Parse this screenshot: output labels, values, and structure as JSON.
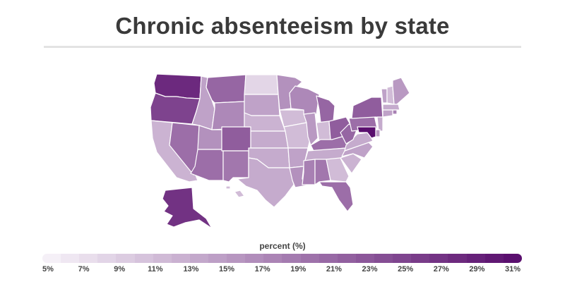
{
  "title": "Chronic absenteeism by state",
  "chart_data": {
    "type": "choropleth",
    "metric": "percent (%)",
    "scale": {
      "min": 5,
      "max": 31,
      "color_low": "#f5f0f7",
      "color_high": "#5a0f6e",
      "ticks": [
        "5%",
        "7%",
        "9%",
        "11%",
        "13%",
        "15%",
        "17%",
        "19%",
        "21%",
        "23%",
        "25%",
        "27%",
        "29%",
        "31%"
      ]
    },
    "states": [
      {
        "id": "WA",
        "value": 28
      },
      {
        "id": "OR",
        "value": 25
      },
      {
        "id": "CA",
        "value": 12
      },
      {
        "id": "NV",
        "value": 20
      },
      {
        "id": "ID",
        "value": 14
      },
      {
        "id": "MT",
        "value": 21
      },
      {
        "id": "WY",
        "value": 17
      },
      {
        "id": "UT",
        "value": 16
      },
      {
        "id": "AZ",
        "value": 20
      },
      {
        "id": "CO",
        "value": 22
      },
      {
        "id": "NM",
        "value": 19
      },
      {
        "id": "ND",
        "value": 8
      },
      {
        "id": "SD",
        "value": 14
      },
      {
        "id": "NE",
        "value": 12
      },
      {
        "id": "KS",
        "value": 13
      },
      {
        "id": "OK",
        "value": 13
      },
      {
        "id": "TX",
        "value": 13
      },
      {
        "id": "MN",
        "value": 16
      },
      {
        "id": "IA",
        "value": 11
      },
      {
        "id": "MO",
        "value": 11
      },
      {
        "id": "AR",
        "value": 14
      },
      {
        "id": "LA",
        "value": 16
      },
      {
        "id": "WI",
        "value": 17
      },
      {
        "id": "IL",
        "value": 15
      },
      {
        "id": "MI",
        "value": 21
      },
      {
        "id": "IN",
        "value": 11
      },
      {
        "id": "OH",
        "value": 22
      },
      {
        "id": "KY",
        "value": 20
      },
      {
        "id": "TN",
        "value": 13
      },
      {
        "id": "MS",
        "value": 18
      },
      {
        "id": "AL",
        "value": 19
      },
      {
        "id": "GA",
        "value": 11
      },
      {
        "id": "FL",
        "value": 20
      },
      {
        "id": "SC",
        "value": 12
      },
      {
        "id": "NC",
        "value": 14
      },
      {
        "id": "VA",
        "value": 13
      },
      {
        "id": "WV",
        "value": 21
      },
      {
        "id": "PA",
        "value": 20
      },
      {
        "id": "NY",
        "value": 22
      },
      {
        "id": "VT",
        "value": 14
      },
      {
        "id": "NH",
        "value": 11
      },
      {
        "id": "ME",
        "value": 15
      },
      {
        "id": "MA",
        "value": 13
      },
      {
        "id": "RI",
        "value": 18
      },
      {
        "id": "CT",
        "value": 14
      },
      {
        "id": "NJ",
        "value": 13
      },
      {
        "id": "DE",
        "value": 15
      },
      {
        "id": "MD",
        "value": 31
      },
      {
        "id": "AK",
        "value": 27
      },
      {
        "id": "HI",
        "value": 11
      }
    ]
  }
}
